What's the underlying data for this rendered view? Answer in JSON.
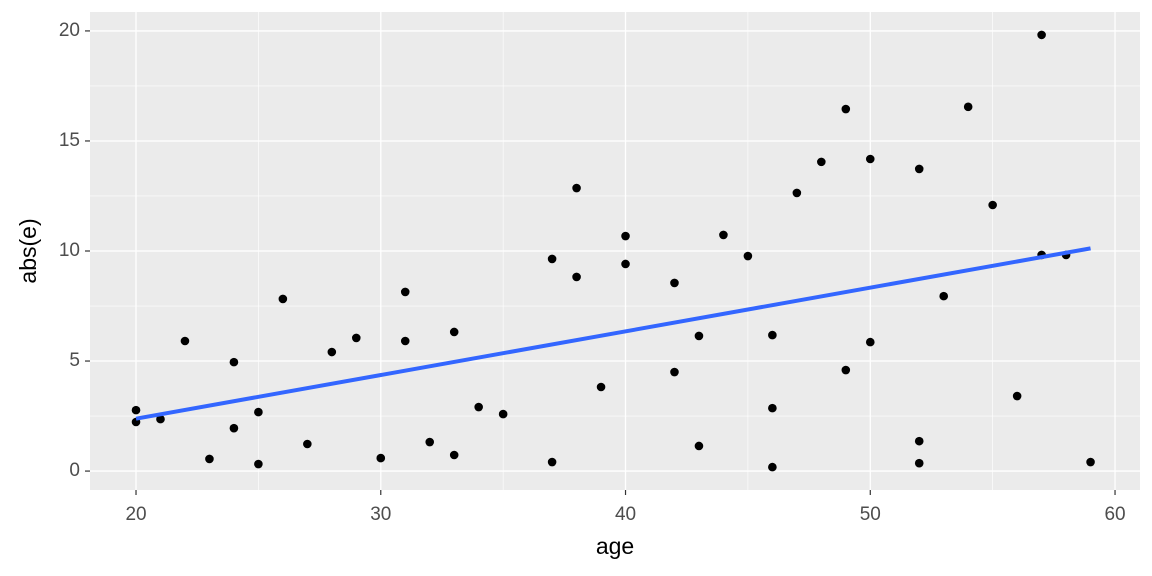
{
  "chart_data": {
    "type": "scatter",
    "x_label": "age",
    "y_label": "abs(e)",
    "xlim": [
      18.12,
      61.02
    ],
    "ylim": [
      -0.86,
      20.86
    ],
    "xticks": [
      20,
      30,
      40,
      50,
      60
    ],
    "yticks": [
      0,
      5,
      10,
      15,
      20
    ],
    "grid": true,
    "panel_color": "#EBEBEB",
    "series": [
      {
        "color": "#000000",
        "x": [
          20,
          20,
          21,
          22,
          23,
          24,
          24,
          25,
          25,
          26,
          27,
          28,
          29,
          30,
          31,
          31,
          32,
          33,
          33,
          34,
          35,
          37,
          37,
          38,
          38,
          39,
          40,
          40,
          42,
          42,
          43,
          43,
          44,
          45,
          46,
          46,
          46,
          47,
          48,
          49,
          49,
          50,
          50,
          52,
          52,
          52,
          53,
          54,
          55,
          56,
          57,
          57,
          58,
          59
        ],
        "values": [
          2.23,
          2.77,
          2.36,
          5.91,
          0.55,
          4.95,
          1.95,
          2.68,
          0.32,
          7.82,
          1.23,
          5.41,
          6.05,
          0.59,
          8.14,
          5.91,
          1.32,
          6.32,
          0.73,
          2.91,
          2.59,
          9.64,
          0.41,
          12.86,
          8.82,
          3.82,
          10.68,
          9.41,
          8.55,
          4.5,
          6.14,
          1.14,
          10.73,
          9.77,
          6.18,
          2.86,
          0.18,
          12.64,
          14.05,
          16.45,
          4.59,
          14.18,
          5.86,
          13.73,
          1.36,
          0.36,
          7.95,
          16.55,
          12.09,
          3.41,
          19.82,
          9.82,
          9.82,
          0.41
        ]
      }
    ],
    "fit": {
      "color": "#3366FF",
      "x": [
        20,
        59
      ],
      "values": [
        2.38,
        10.12
      ]
    }
  }
}
